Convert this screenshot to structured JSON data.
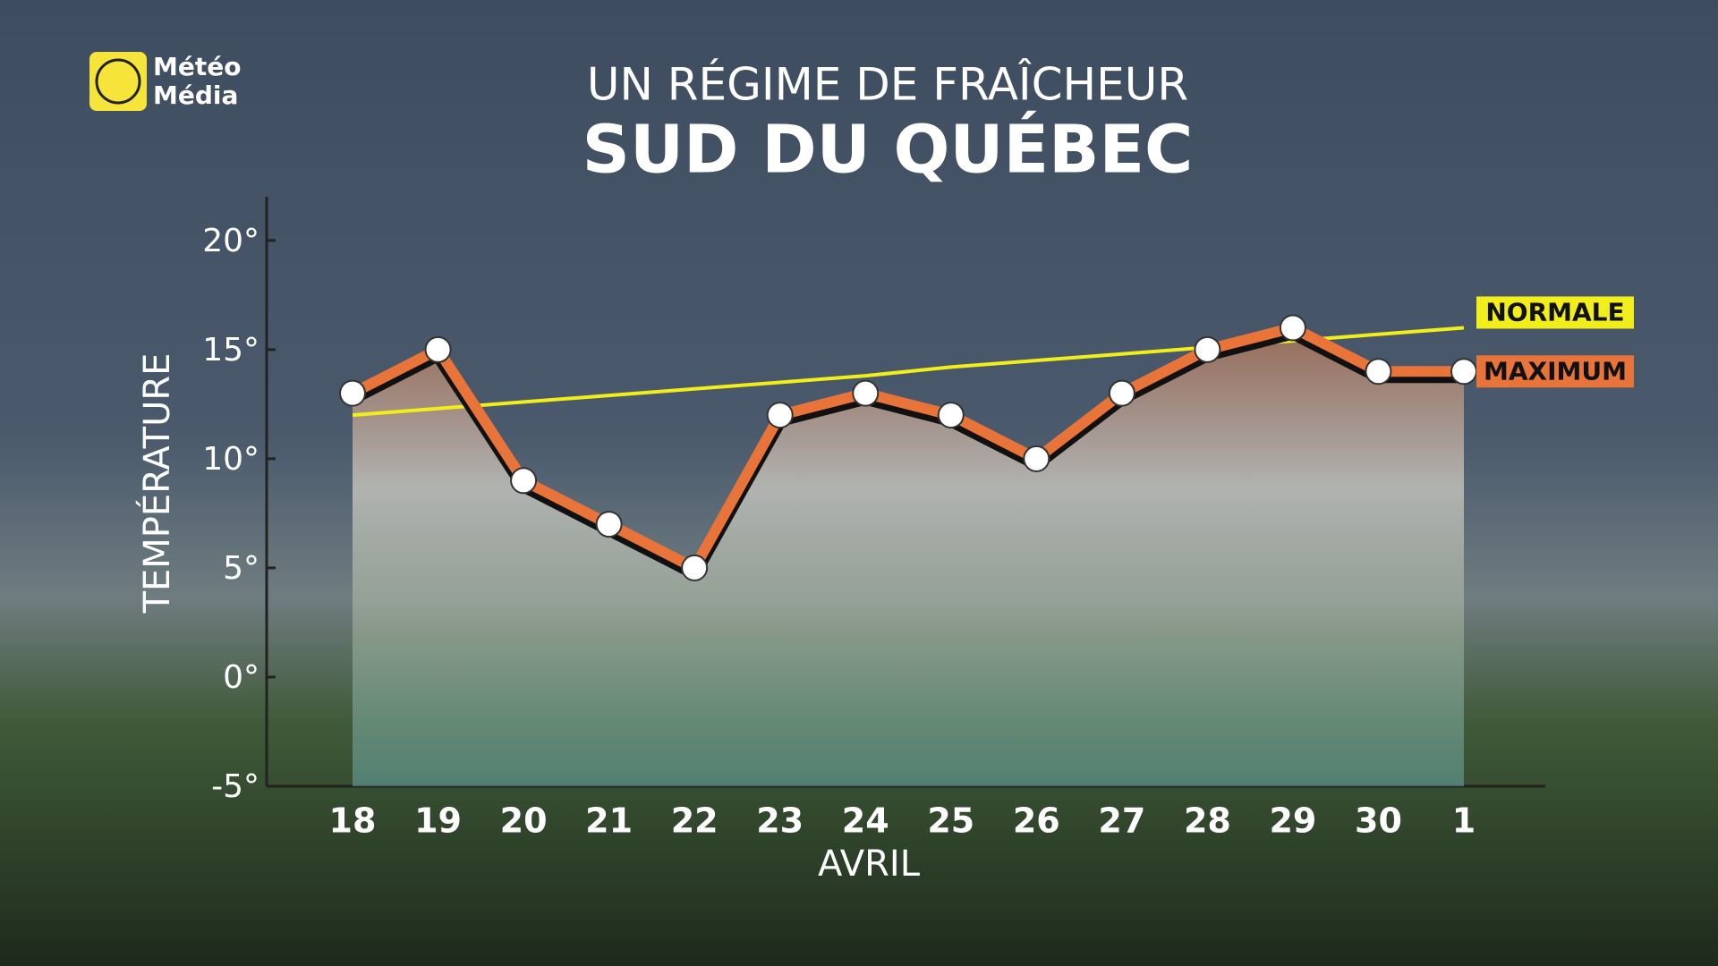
{
  "logo": {
    "line1": "Météo",
    "line2": "Média"
  },
  "chart_data": {
    "type": "line",
    "title": "UN RÉGIME DE FRAÎCHEUR",
    "subtitle": "SUD DU QUÉBEC",
    "y_label": "TEMPÉRATURE",
    "x_label": "AVRIL",
    "categories": [
      "18",
      "19",
      "20",
      "21",
      "22",
      "23",
      "24",
      "25",
      "26",
      "27",
      "28",
      "29",
      "30",
      "1"
    ],
    "series": [
      {
        "name": "NORMALE",
        "color": "#f2ee1a",
        "values": [
          12,
          12.3,
          12.6,
          12.9,
          13.2,
          13.5,
          13.8,
          14.2,
          14.5,
          14.8,
          15.1,
          15.4,
          15.7,
          16
        ]
      },
      {
        "name": "MAXIMUM",
        "color": "#e8743a",
        "values": [
          13,
          15,
          9,
          7,
          5,
          12,
          13,
          12,
          10,
          13,
          15,
          16,
          14,
          14
        ]
      }
    ],
    "ylim": [
      -5,
      22
    ],
    "yticks": [
      {
        "value": -5,
        "label": "-5°"
      },
      {
        "value": 0,
        "label": "0°"
      },
      {
        "value": 5,
        "label": "5°"
      },
      {
        "value": 10,
        "label": "10°"
      },
      {
        "value": 15,
        "label": "15°"
      },
      {
        "value": 20,
        "label": "20°"
      }
    ],
    "legend": "right"
  }
}
